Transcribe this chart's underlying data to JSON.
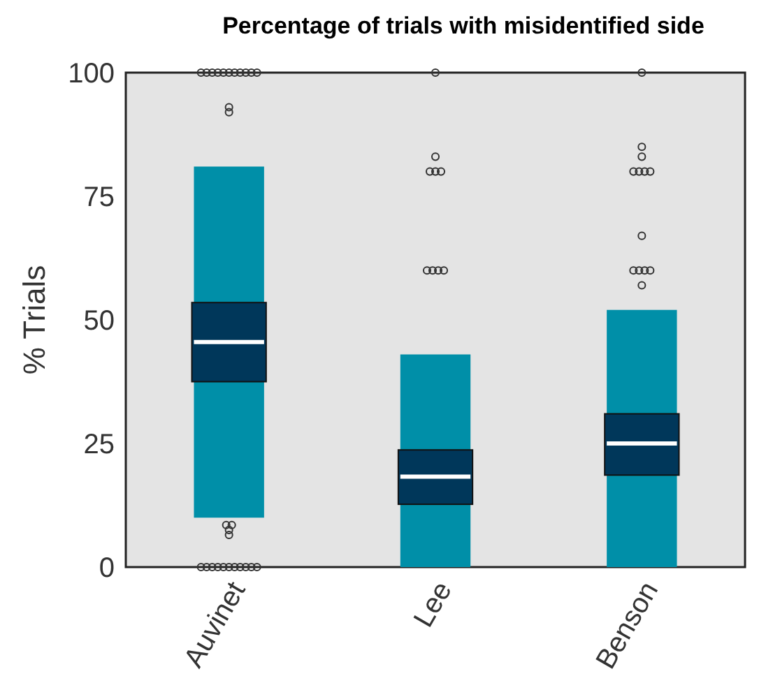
{
  "chart_data": {
    "type": "box",
    "title": "Percentage of trials with misidentified side",
    "ylabel": "% Trials",
    "categories": [
      "Auvinet",
      "Lee",
      "Benson"
    ],
    "boxes": [
      {
        "low": 10,
        "q1": 37.5,
        "median": 45.5,
        "q3": 53.5,
        "high": 81,
        "outliers": [
          100,
          100,
          100,
          100,
          100,
          100,
          100,
          100,
          100,
          100,
          100,
          93,
          92,
          8.5,
          8.5,
          7.5,
          6.5,
          0,
          0,
          0,
          0,
          0,
          0,
          0,
          0,
          0,
          0,
          0
        ]
      },
      {
        "low": 0,
        "q1": 12.7,
        "median": 18.3,
        "q3": 23.7,
        "high": 43,
        "outliers": [
          100,
          83,
          80,
          80,
          80,
          60,
          60,
          60,
          60
        ]
      },
      {
        "low": 0,
        "q1": 18.6,
        "median": 25,
        "q3": 31,
        "high": 52,
        "outliers": [
          100,
          85,
          83,
          80,
          80,
          80,
          80,
          67,
          60,
          60,
          60,
          60,
          57
        ]
      }
    ],
    "color": "#00375a",
    "ylim": [
      0,
      100
    ],
    "yticks": [
      0,
      25,
      50,
      75,
      100
    ],
    "grid": false,
    "marker": "circle"
  }
}
